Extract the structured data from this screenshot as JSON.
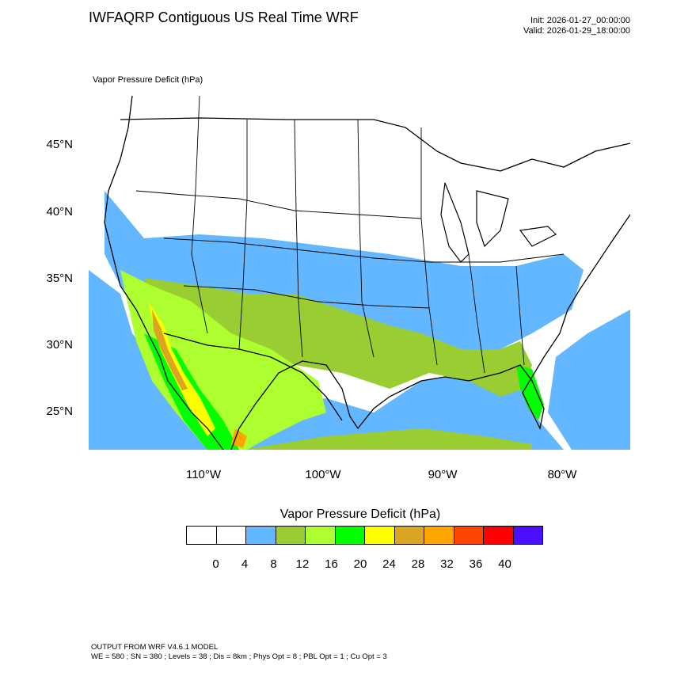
{
  "header": {
    "title": "IWFAQRP Contiguous US Real Time WRF",
    "init": "Init: 2026-01-27_00:00:00",
    "valid": "Valid: 2026-01-29_18:00:00"
  },
  "map": {
    "field_label": "Vapor Pressure Deficit   (hPa)",
    "lat_labels": [
      "45°N",
      "40°N",
      "35°N",
      "30°N",
      "25°N"
    ],
    "lon_labels": [
      "110°W",
      "100°W",
      "90°W",
      "80°W"
    ],
    "colors": {
      "land_cool": "#ffffff",
      "band_4_8": "#63b7ff",
      "band_8_12": "#9acd32",
      "band_12_16": "#adff2f",
      "band_16_20": "#00ff00",
      "band_20_24": "#ffff00",
      "band_24_28": "#daa520",
      "band_28_32": "#ffa500",
      "band_32_36": "#ff4500",
      "band_36_40": "#ff0000",
      "band_40_plus": "#4b0fff"
    }
  },
  "legend": {
    "title": "Vapor Pressure Deficit  (hPa)",
    "colors": [
      "#ffffff",
      "#ffffff",
      "#63b7ff",
      "#9acd32",
      "#adff2f",
      "#00ff00",
      "#ffff00",
      "#daa520",
      "#ffa500",
      "#ff4500",
      "#ff0000",
      "#4b0fff"
    ],
    "ticks": [
      "0",
      "4",
      "8",
      "12",
      "16",
      "20",
      "24",
      "28",
      "32",
      "36",
      "40"
    ]
  },
  "footer": {
    "line1": "OUTPUT FROM WRF V4.6.1 MODEL",
    "line2": "WE = 580 ; SN = 380 ; Levels = 38 ; Dis = 8km ; Phys Opt = 8 ; PBL Opt = 1 ; Cu Opt = 3"
  }
}
